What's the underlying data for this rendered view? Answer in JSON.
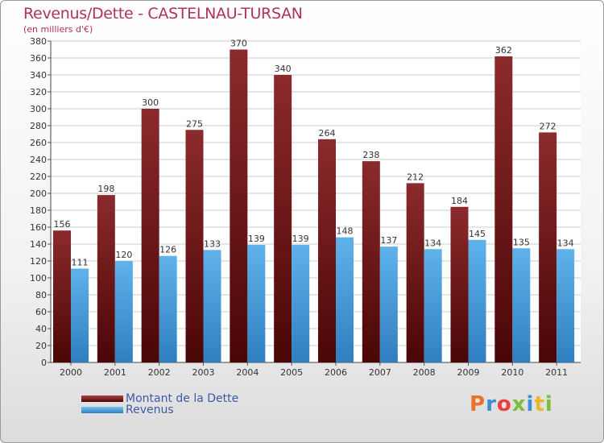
{
  "header": {
    "title": "Revenus/Dette - CASTELNAU-TURSAN",
    "subtitle": "(en milliers d'€)"
  },
  "legend": {
    "debt_label": "Montant de la Dette",
    "revenue_label": "Revenus"
  },
  "brand": {
    "logo_text": "Proxiti"
  },
  "colors": {
    "debt": "#7a1a1c",
    "revenue": "#4aa3e0",
    "labels": "#333333",
    "grid": "#cccccc",
    "title": "#b03060"
  },
  "chart_data": {
    "type": "bar",
    "title": "Revenus/Dette - CASTELNAU-TURSAN",
    "subtitle": "(en milliers d'€)",
    "xlabel": "",
    "ylabel": "",
    "categories": [
      "2000",
      "2001",
      "2002",
      "2003",
      "2004",
      "2005",
      "2006",
      "2007",
      "2008",
      "2009",
      "2010",
      "2011"
    ],
    "series": [
      {
        "name": "Montant de la Dette",
        "values": [
          156,
          198,
          300,
          275,
          370,
          340,
          264,
          238,
          212,
          184,
          362,
          272
        ]
      },
      {
        "name": "Revenus",
        "values": [
          111,
          120,
          126,
          133,
          139,
          139,
          148,
          137,
          134,
          145,
          135,
          134
        ]
      }
    ],
    "ylim": [
      0,
      380
    ],
    "ytick_step": 20,
    "grid": true,
    "legend_position": "bottom-left"
  }
}
